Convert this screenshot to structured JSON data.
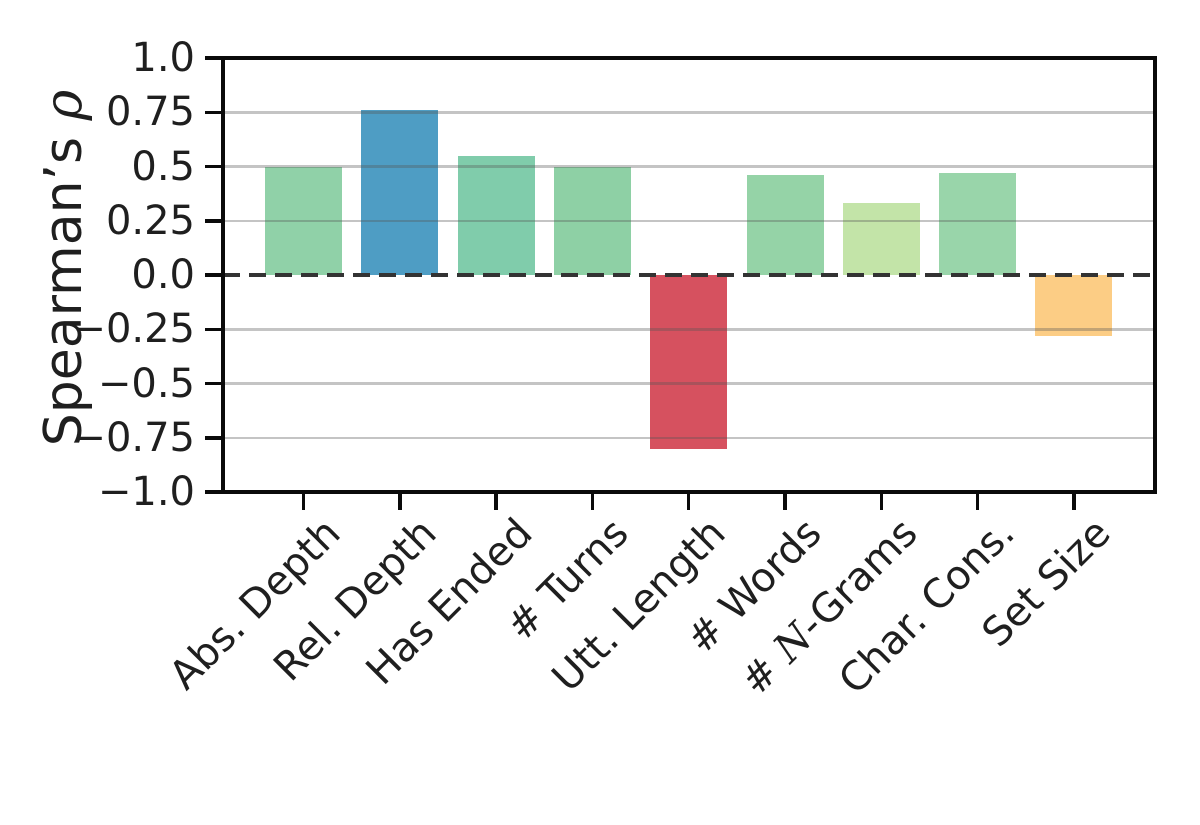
{
  "chart_data": {
    "type": "bar",
    "title": "",
    "xlabel": "",
    "ylabel": "Spearman’s ρ",
    "ylabel_math_segment": "ρ",
    "ylim": [
      -1.0,
      1.0
    ],
    "grid": true,
    "zero_line_style": "dashed",
    "legend": null,
    "categories": [
      "Abs. Depth",
      "Rel. Depth",
      "Has Ended",
      "# Turns",
      "Utt. Length",
      "# Words",
      "# N-Grams",
      "Char. Cons.",
      "Set Size"
    ],
    "category_math_segments": {
      "6": "N"
    },
    "values": [
      0.5,
      0.76,
      0.55,
      0.5,
      -0.8,
      0.46,
      0.33,
      0.47,
      -0.28
    ],
    "bar_colors": [
      "#90d1a8",
      "#4e9dc4",
      "#80ccab",
      "#8ed0a5",
      "#d6515f",
      "#95d3a7",
      "#c3e4a8",
      "#99d5aa",
      "#fccd85"
    ],
    "yticks": [
      {
        "value": 1.0,
        "label": "1.0"
      },
      {
        "value": 0.75,
        "label": "0.75"
      },
      {
        "value": 0.5,
        "label": "0.5"
      },
      {
        "value": 0.25,
        "label": "0.25"
      },
      {
        "value": 0.0,
        "label": "0.0"
      },
      {
        "value": -0.25,
        "label": "−0.25"
      },
      {
        "value": -0.5,
        "label": "−0.5"
      },
      {
        "value": -0.75,
        "label": "−0.75"
      },
      {
        "value": -1.0,
        "label": "−1.0"
      }
    ]
  },
  "colors": {
    "background": "#ffffff",
    "axis": "#0a0a0a",
    "text": "#1f1f1f",
    "grid": "#b3b3b3",
    "zero_line": "#333333"
  }
}
